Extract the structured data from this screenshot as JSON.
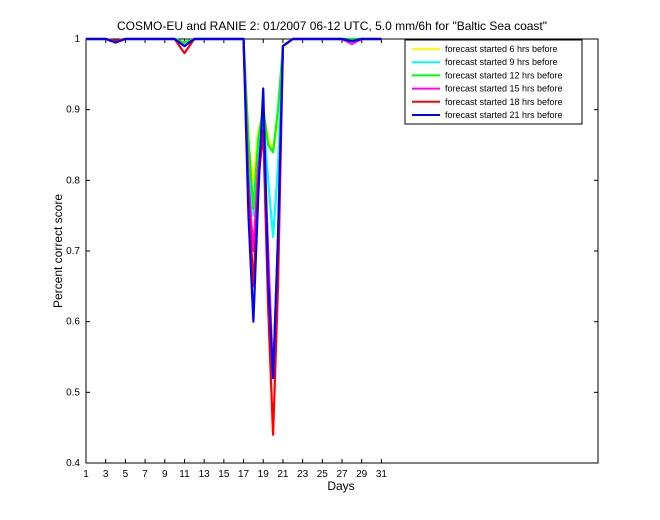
{
  "chart_data": {
    "type": "line",
    "title": "COSMO-EU and RANIE 2: 01/2007 06-12 UTC, 5.0 mm/6h for \"Baltic Sea coast\"",
    "xlabel": "Days",
    "ylabel": "Percent correct score",
    "xlim": [
      1,
      53
    ],
    "ylim": [
      0.4,
      1
    ],
    "x_ticks": [
      1,
      3,
      5,
      7,
      9,
      11,
      13,
      15,
      17,
      19,
      21,
      23,
      25,
      27,
      29,
      31
    ],
    "y_ticks": [
      0.4,
      0.5,
      0.6,
      0.7,
      0.8,
      0.9,
      1
    ],
    "y_tick_labels": [
      "0.4",
      "0.5",
      "0.6",
      "0.7",
      "0.8",
      "0.9",
      "1"
    ],
    "legend_position": "top-right",
    "x": [
      1,
      2,
      3,
      4,
      5,
      6,
      7,
      8,
      9,
      10,
      11,
      12,
      13,
      14,
      15,
      16,
      17,
      17.5,
      18,
      18.5,
      19,
      19.5,
      20,
      20.5,
      21,
      22,
      23,
      24,
      25,
      26,
      27,
      28,
      29,
      30,
      31
    ],
    "series": [
      {
        "name": "forecast started 6 hrs before",
        "color": "#ffff00",
        "values": [
          1,
          1,
          1,
          0.997,
          1,
          1,
          1,
          1,
          1,
          1,
          0.995,
          1,
          1,
          1,
          1,
          1,
          1,
          0.85,
          0.8,
          0.87,
          0.9,
          0.86,
          0.84,
          0.88,
          0.99,
          1,
          1,
          1,
          1,
          1,
          1,
          1,
          1,
          1,
          1
        ]
      },
      {
        "name": "forecast started 9 hrs before",
        "color": "#00ffff",
        "values": [
          1,
          1,
          1,
          0.997,
          1,
          1,
          1,
          1,
          1,
          1,
          0.995,
          1,
          1,
          1,
          1,
          1,
          1,
          0.82,
          0.75,
          0.84,
          0.89,
          0.8,
          0.72,
          0.82,
          0.99,
          1,
          1,
          1,
          1,
          1,
          1,
          1,
          1,
          1,
          1
        ]
      },
      {
        "name": "forecast started 12 hrs before",
        "color": "#00ff00",
        "values": [
          1,
          1,
          1,
          0.997,
          1,
          1,
          1,
          1,
          1,
          1,
          0.995,
          1,
          1,
          1,
          1,
          1,
          1,
          0.86,
          0.76,
          0.86,
          0.9,
          0.85,
          0.84,
          0.9,
          0.99,
          1,
          1,
          1,
          1,
          1,
          1,
          1,
          1,
          1,
          1
        ]
      },
      {
        "name": "forecast started 15 hrs before",
        "color": "#ff00ff",
        "values": [
          1,
          1,
          1,
          0.997,
          1,
          1,
          1,
          1,
          1,
          1,
          0.99,
          1,
          1,
          1,
          1,
          1,
          1,
          0.8,
          0.7,
          0.82,
          0.88,
          0.7,
          0.52,
          0.72,
          0.99,
          1,
          1,
          1,
          1,
          1,
          1,
          0.993,
          1,
          1,
          1
        ]
      },
      {
        "name": "forecast started 18 hrs before",
        "color": "#ff0000",
        "values": [
          1,
          1,
          1,
          0.997,
          1,
          1,
          1,
          1,
          1,
          1,
          0.98,
          1,
          1,
          1,
          1,
          1,
          1,
          0.78,
          0.65,
          0.8,
          0.87,
          0.62,
          0.44,
          0.65,
          0.99,
          1,
          1,
          1,
          1,
          1,
          1,
          0.997,
          1,
          1,
          1
        ]
      },
      {
        "name": "forecast started 21 hrs before",
        "color": "#0000ff",
        "values": [
          1,
          1,
          1,
          0.995,
          1,
          1,
          1,
          1,
          1,
          1,
          0.99,
          1,
          1,
          1,
          1,
          1,
          1,
          0.75,
          0.6,
          0.78,
          0.93,
          0.66,
          0.52,
          0.72,
          0.99,
          1,
          1,
          1,
          1,
          1,
          1,
          0.997,
          1,
          1,
          1
        ]
      }
    ]
  }
}
